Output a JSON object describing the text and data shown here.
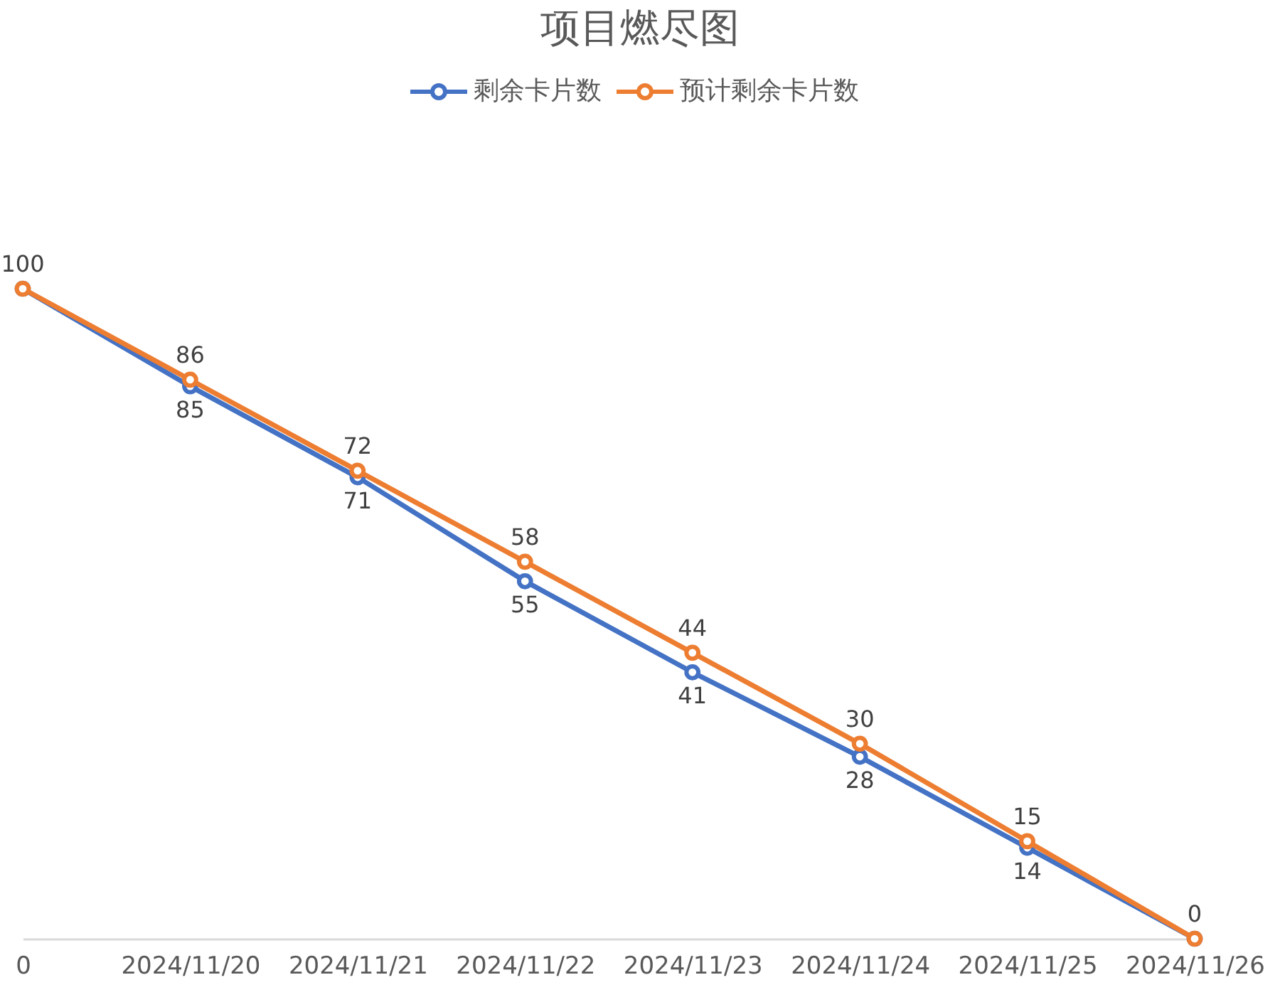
{
  "chart_data": {
    "type": "line",
    "title": "项目燃尽图",
    "categories": [
      "0",
      "2024/11/20",
      "2024/11/21",
      "2024/11/22",
      "2024/11/23",
      "2024/11/24",
      "2024/11/25",
      "2024/11/26"
    ],
    "series": [
      {
        "name": "剩余卡片数",
        "color": "#4472c4",
        "values": [
          100,
          85,
          71,
          55,
          41,
          28,
          14,
          0
        ],
        "value_labels": [
          null,
          "85",
          "71",
          "55",
          "41",
          "28",
          "14",
          null
        ]
      },
      {
        "name": "预计剩余卡片数",
        "color": "#ed7d31",
        "values": [
          100,
          86,
          72,
          58,
          44,
          30,
          15,
          0
        ],
        "value_labels": [
          "100",
          "86",
          "72",
          "58",
          "44",
          "30",
          "15",
          "0"
        ]
      }
    ],
    "legend": "top",
    "marker": "circle",
    "line_style": "solid",
    "tick_labels": "x"
  }
}
